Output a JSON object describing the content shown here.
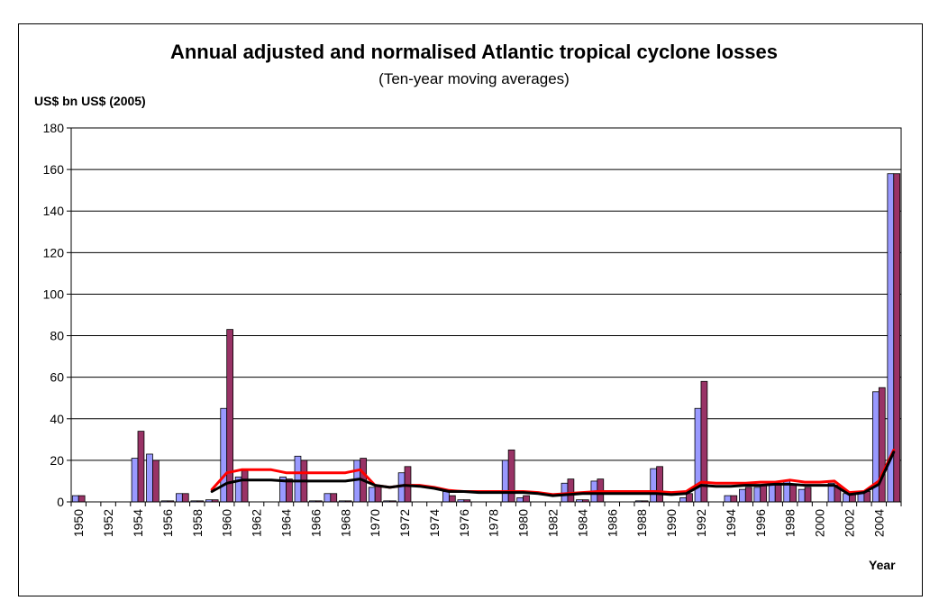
{
  "chart_data": {
    "type": "bar",
    "title": "Annual adjusted and normalised Atlantic tropical cyclone losses",
    "subtitle": "(Ten-year moving averages)",
    "ylabel": "US$ bn US$ (2005)",
    "xlabel": "Year",
    "ylim": [
      0,
      180
    ],
    "yticks": [
      0,
      20,
      40,
      60,
      80,
      100,
      120,
      140,
      160,
      180
    ],
    "xlim": [
      1950,
      2005
    ],
    "xtick_labels": [
      "1950",
      "1952",
      "1954",
      "1956",
      "1958",
      "1960",
      "1962",
      "1964",
      "1966",
      "1968",
      "1970",
      "1972",
      "1974",
      "1976",
      "1978",
      "1980",
      "1982",
      "1984",
      "1986",
      "1988",
      "1990",
      "1992",
      "1994",
      "1996",
      "1998",
      "2000",
      "2002",
      "2004"
    ],
    "grid": true,
    "categories": [
      1950,
      1951,
      1952,
      1953,
      1954,
      1955,
      1956,
      1957,
      1958,
      1959,
      1960,
      1961,
      1962,
      1963,
      1964,
      1965,
      1966,
      1967,
      1968,
      1969,
      1970,
      1971,
      1972,
      1973,
      1974,
      1975,
      1976,
      1977,
      1978,
      1979,
      1980,
      1981,
      1982,
      1983,
      1984,
      1985,
      1986,
      1987,
      1988,
      1989,
      1990,
      1991,
      1992,
      1993,
      1994,
      1995,
      1996,
      1997,
      1998,
      1999,
      2000,
      2001,
      2002,
      2003,
      2004,
      2005
    ],
    "series": [
      {
        "type": "bar",
        "color": "#9999ff",
        "values": [
          3,
          0,
          0,
          0,
          21,
          23,
          0.5,
          4,
          0.5,
          1,
          45,
          12,
          0,
          0,
          12,
          22,
          0.5,
          4,
          0.5,
          20,
          7,
          0.5,
          14,
          0,
          0,
          5,
          1,
          0,
          0,
          20,
          2,
          0,
          0,
          9,
          1,
          10,
          0,
          0,
          0.5,
          16,
          0,
          2,
          45,
          0,
          3,
          6,
          7,
          8,
          10,
          6,
          0,
          9,
          4,
          4,
          53,
          158
        ]
      },
      {
        "type": "bar",
        "color": "#993366",
        "values": [
          3,
          0,
          0,
          0,
          34,
          20,
          0.5,
          4,
          0.5,
          1,
          83,
          15,
          0,
          0,
          11,
          20,
          0.5,
          4,
          0.5,
          21,
          8,
          0.5,
          17,
          0,
          0,
          3,
          1,
          0,
          0,
          25,
          3,
          0,
          0,
          11,
          1,
          11,
          0,
          0,
          0.5,
          17,
          0,
          4,
          58,
          0,
          3,
          7,
          8,
          8,
          8,
          7,
          0,
          8,
          4,
          5,
          55,
          158
        ]
      },
      {
        "type": "line",
        "color": "#ff0000",
        "x": [
          1959,
          1960,
          1961,
          1962,
          1963,
          1964,
          1965,
          1966,
          1967,
          1968,
          1969,
          1970,
          1971,
          1972,
          1973,
          1974,
          1975,
          1976,
          1977,
          1978,
          1979,
          1980,
          1981,
          1982,
          1983,
          1984,
          1985,
          1986,
          1987,
          1988,
          1989,
          1990,
          1991,
          1992,
          1993,
          1994,
          1995,
          1996,
          1997,
          1998,
          1999,
          2000,
          2001,
          2002,
          2003,
          2004,
          2005
        ],
        "values": [
          6,
          14,
          15.5,
          15.5,
          15.5,
          14,
          14,
          14,
          14,
          14,
          15.5,
          8,
          7,
          8,
          8,
          7,
          5.5,
          5,
          5,
          5,
          5,
          5,
          4.5,
          3.5,
          4,
          4.5,
          5,
          5,
          5,
          5,
          5,
          4.5,
          5,
          9.5,
          9,
          9,
          9,
          9.5,
          9.5,
          10.5,
          9.5,
          9.5,
          10,
          4.5,
          5,
          10,
          25
        ]
      },
      {
        "type": "line",
        "color": "#000000",
        "x": [
          1959,
          1960,
          1961,
          1962,
          1963,
          1964,
          1965,
          1966,
          1967,
          1968,
          1969,
          1970,
          1971,
          1972,
          1973,
          1974,
          1975,
          1976,
          1977,
          1978,
          1979,
          1980,
          1981,
          1982,
          1983,
          1984,
          1985,
          1986,
          1987,
          1988,
          1989,
          1990,
          1991,
          1992,
          1993,
          1994,
          1995,
          1996,
          1997,
          1998,
          1999,
          2000,
          2001,
          2002,
          2003,
          2004,
          2005
        ],
        "values": [
          5,
          9,
          10.5,
          10.5,
          10.5,
          10,
          10,
          10,
          10,
          10,
          11,
          8,
          7,
          8,
          7.5,
          6.5,
          5,
          5,
          4.5,
          4.5,
          4.5,
          4.5,
          4,
          3,
          3.5,
          4,
          4,
          4,
          4,
          4,
          4,
          3.5,
          4,
          8,
          7.5,
          7.5,
          8,
          8,
          8.5,
          8.5,
          8,
          8,
          8,
          3.5,
          4.5,
          8.5,
          24
        ]
      }
    ]
  }
}
